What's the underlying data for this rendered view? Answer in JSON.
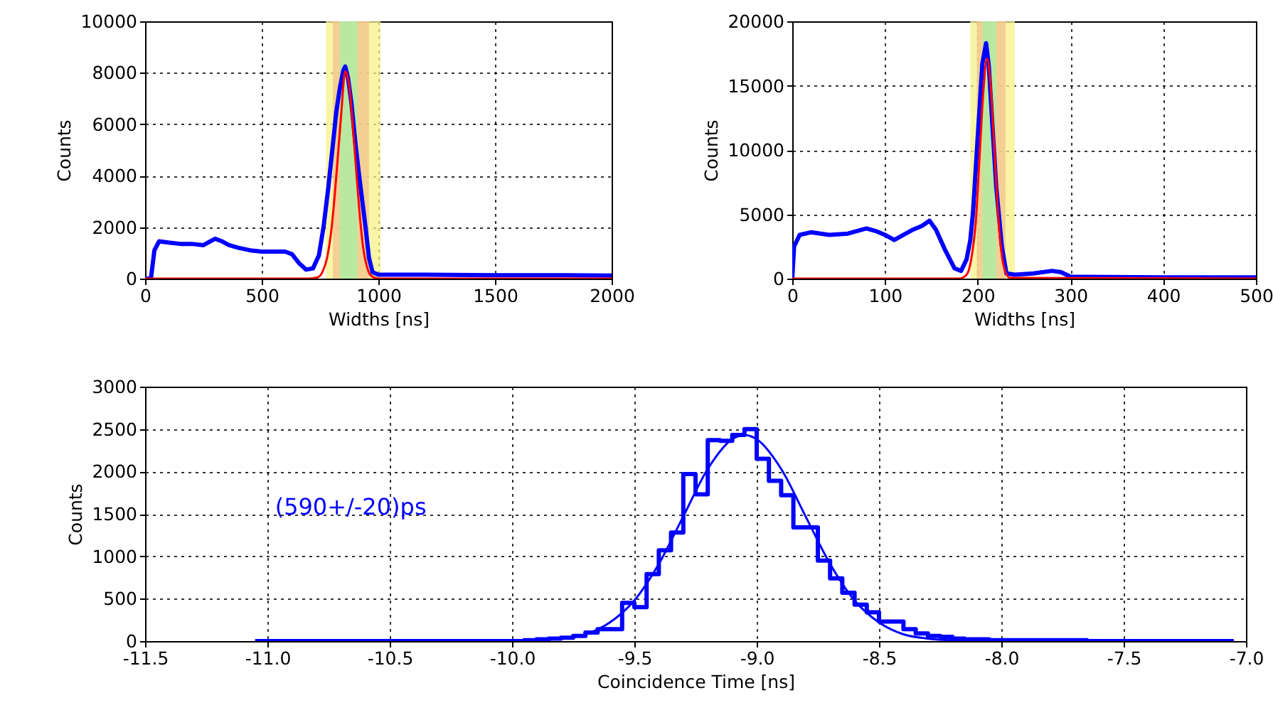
{
  "chart_data": [
    {
      "type": "line",
      "xlabel": "Widths [ns]",
      "ylabel": "Counts",
      "xlim": [
        0,
        2000
      ],
      "ylim": [
        0,
        10000
      ],
      "xticks": [
        0,
        500,
        1000,
        1500,
        2000
      ],
      "yticks": [
        0,
        2000,
        4000,
        6000,
        8000,
        10000
      ],
      "grid": true,
      "bands": [
        {
          "axis": "x",
          "from": 775,
          "to": 1010,
          "color": "#f5f28a"
        },
        {
          "axis": "x",
          "from": 805,
          "to": 960,
          "color": "#f3c28e"
        },
        {
          "axis": "x",
          "from": 835,
          "to": 910,
          "color": "#a6f0a6"
        }
      ],
      "series": [
        {
          "color": "#0000ff",
          "x": [
            0,
            25,
            40,
            60,
            100,
            150,
            200,
            250,
            300,
            330,
            360,
            400,
            450,
            500,
            550,
            600,
            630,
            660,
            690,
            720,
            745,
            765,
            785,
            805,
            820,
            835,
            850,
            858,
            870,
            885,
            900,
            915,
            930,
            945,
            960,
            975,
            1000,
            1200,
            1500,
            1800,
            2000
          ],
          "values": [
            0,
            0,
            1100,
            1450,
            1400,
            1350,
            1350,
            1300,
            1550,
            1450,
            1300,
            1200,
            1100,
            1050,
            1050,
            1050,
            950,
            600,
            350,
            400,
            900,
            2000,
            3500,
            5200,
            6500,
            7400,
            8100,
            8240,
            7800,
            6800,
            5400,
            4200,
            3100,
            2000,
            800,
            250,
            150,
            150,
            130,
            130,
            120
          ]
        },
        {
          "color": "#ff0000",
          "x": [
            0,
            700,
            740,
            760,
            780,
            800,
            820,
            840,
            858,
            875,
            890,
            905,
            920,
            935,
            950,
            965,
            980,
            1000,
            2000
          ],
          "values": [
            0,
            0,
            50,
            250,
            800,
            2000,
            4000,
            6300,
            8050,
            7500,
            6000,
            4200,
            2500,
            1200,
            500,
            150,
            50,
            0,
            0
          ]
        }
      ]
    },
    {
      "type": "line",
      "xlabel": "Widths [ns]",
      "ylabel": "Counts",
      "xlim": [
        0,
        500
      ],
      "ylim": [
        0,
        20000
      ],
      "xticks": [
        0,
        100,
        200,
        300,
        400,
        500
      ],
      "yticks": [
        0,
        5000,
        10000,
        15000,
        20000
      ],
      "grid": true,
      "bands": [
        {
          "axis": "x",
          "from": 192,
          "to": 240,
          "color": "#f5f28a"
        },
        {
          "axis": "x",
          "from": 199,
          "to": 230,
          "color": "#f3c28e"
        },
        {
          "axis": "x",
          "from": 205,
          "to": 220,
          "color": "#a6f0a6"
        }
      ],
      "series": [
        {
          "color": "#0000ff",
          "x": [
            0,
            2,
            8,
            20,
            40,
            60,
            80,
            90,
            100,
            110,
            120,
            130,
            140,
            148,
            155,
            165,
            175,
            182,
            188,
            192,
            195,
            200,
            205,
            209,
            212,
            215,
            220,
            226,
            231,
            240,
            260,
            280,
            290,
            300,
            400,
            500
          ],
          "values": [
            0,
            2500,
            3400,
            3600,
            3400,
            3500,
            3900,
            3700,
            3400,
            3000,
            3400,
            3800,
            4100,
            4500,
            3800,
            2200,
            800,
            600,
            1500,
            3000,
            5200,
            11000,
            16700,
            18300,
            16500,
            12900,
            7100,
            2500,
            400,
            300,
            400,
            600,
            500,
            150,
            100,
            100
          ]
        },
        {
          "color": "#ff0000",
          "x": [
            0,
            180,
            188,
            193,
            198,
            202,
            206,
            210,
            214,
            218,
            222,
            226,
            230,
            235,
            500
          ],
          "values": [
            0,
            0,
            300,
            1500,
            4500,
            9500,
            14500,
            17100,
            15000,
            10000,
            5000,
            1800,
            500,
            50,
            0
          ]
        }
      ]
    },
    {
      "type": "step",
      "xlabel": "Coincidence Time [ns]",
      "ylabel": "Counts",
      "xlim": [
        -11.5,
        -7.0
      ],
      "ylim": [
        0,
        3000
      ],
      "xticks": [
        -11.5,
        {
          "value": -11,
          "label": "-11.0"
        },
        -10.5,
        {
          "value": -10,
          "label": "-10.0"
        },
        -9.5,
        {
          "value": -9,
          "label": "-9.0"
        },
        -8.5,
        {
          "value": -8,
          "label": "-8.0"
        },
        -7.5,
        {
          "value": -7,
          "label": "-7.0"
        }
      ],
      "yticks": [
        0,
        500,
        1000,
        1500,
        2000,
        2500,
        3000
      ],
      "grid": true,
      "annotations": [
        "(590+/-20)ps"
      ],
      "series": [
        {
          "type": "step",
          "color": "#0000ff",
          "x": [
            -11.05,
            -11.0,
            -10.95,
            -10.9,
            -10.85,
            -10.8,
            -10.75,
            -10.7,
            -10.65,
            -10.6,
            -10.55,
            -10.5,
            -10.45,
            -10.4,
            -10.35,
            -10.3,
            -10.25,
            -10.2,
            -10.15,
            -10.1,
            -10.05,
            -10.0,
            -9.95,
            -9.9,
            -9.85,
            -9.8,
            -9.75,
            -9.7,
            -9.65,
            -9.6,
            -9.55,
            -9.5,
            -9.45,
            -9.4,
            -9.35,
            -9.3,
            -9.25,
            -9.2,
            -9.15,
            -9.1,
            -9.05,
            -9.0,
            -8.95,
            -8.9,
            -8.85,
            -8.8,
            -8.75,
            -8.7,
            -8.65,
            -8.6,
            -8.55,
            -8.5,
            -8.45,
            -8.4,
            -8.35,
            -8.3,
            -8.25,
            -8.2,
            -8.15,
            -8.1,
            -8.05,
            -8.0,
            -7.95,
            -7.9,
            -7.85,
            -7.8,
            -7.75,
            -7.7,
            -7.65,
            -7.6,
            -7.55,
            -7.5,
            -7.45,
            -7.4,
            -7.35,
            -7.3,
            -7.25,
            -7.2,
            -7.15,
            -7.1,
            -7.05
          ],
          "values": [
            0,
            0,
            0,
            0,
            0,
            0,
            0,
            0,
            0,
            0,
            0,
            0,
            0,
            0,
            0,
            0,
            0,
            0,
            0,
            0,
            0,
            0,
            10,
            20,
            30,
            40,
            60,
            100,
            140,
            140,
            450,
            400,
            790,
            1070,
            1280,
            1970,
            1730,
            2370,
            2360,
            2430,
            2500,
            2150,
            1890,
            1720,
            1340,
            1340,
            950,
            740,
            570,
            430,
            340,
            230,
            230,
            140,
            90,
            60,
            50,
            30,
            20,
            20,
            10,
            10,
            10,
            10,
            10,
            10,
            10,
            10,
            0,
            0,
            0,
            0,
            0,
            0,
            0,
            0,
            0,
            0,
            0,
            0,
            0
          ]
        },
        {
          "type": "line",
          "color": "#0000ff",
          "x": [
            -11.05,
            -10.0,
            -9.9,
            -9.8,
            -9.7,
            -9.6,
            -9.5,
            -9.4,
            -9.3,
            -9.2,
            -9.1,
            -9.05,
            -9.0,
            -8.9,
            -8.8,
            -8.7,
            -8.6,
            -8.5,
            -8.4,
            -8.3,
            -8.2,
            -8.0,
            -7.05
          ],
          "values": [
            0,
            0,
            10,
            30,
            80,
            220,
            480,
            910,
            1470,
            2030,
            2380,
            2430,
            2380,
            2030,
            1470,
            910,
            480,
            220,
            80,
            30,
            10,
            0,
            0
          ]
        }
      ]
    }
  ]
}
